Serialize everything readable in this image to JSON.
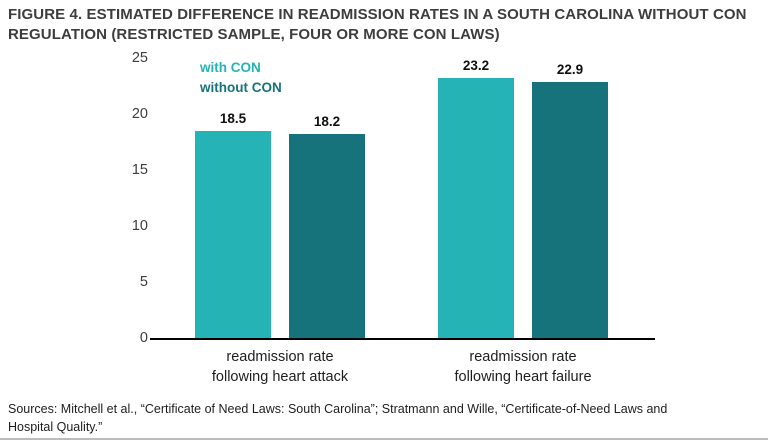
{
  "figure": {
    "title": "FIGURE 4. ESTIMATED DIFFERENCE IN READMISSION RATES IN A SOUTH CAROLINA WITHOUT CON\nREGULATION (RESTRICTED SAMPLE, FOUR OR MORE CON LAWS)",
    "sources": "Sources: Mitchell et al., “Certificate of Need Laws: South Carolina”; Stratmann and Wille, “Certificate-of-Need Laws and\nHospital Quality.”"
  },
  "chart_data": {
    "type": "bar",
    "title": "Estimated difference in readmission rates in a South Carolina without CON regulation",
    "categories": [
      "readmission rate\nfollowing heart attack",
      "readmission rate\nfollowing heart failure"
    ],
    "series": [
      {
        "name": "with CON",
        "values": [
          18.5,
          23.2
        ],
        "color": "#25b3b6"
      },
      {
        "name": "without CON",
        "values": [
          18.2,
          22.9
        ],
        "color": "#16737c"
      }
    ],
    "xlabel": "",
    "ylabel": "",
    "ylim": [
      0,
      25
    ],
    "yticks": [
      0,
      5,
      10,
      15,
      20,
      25
    ],
    "grid": false,
    "legend_position": "top-left-inside"
  }
}
